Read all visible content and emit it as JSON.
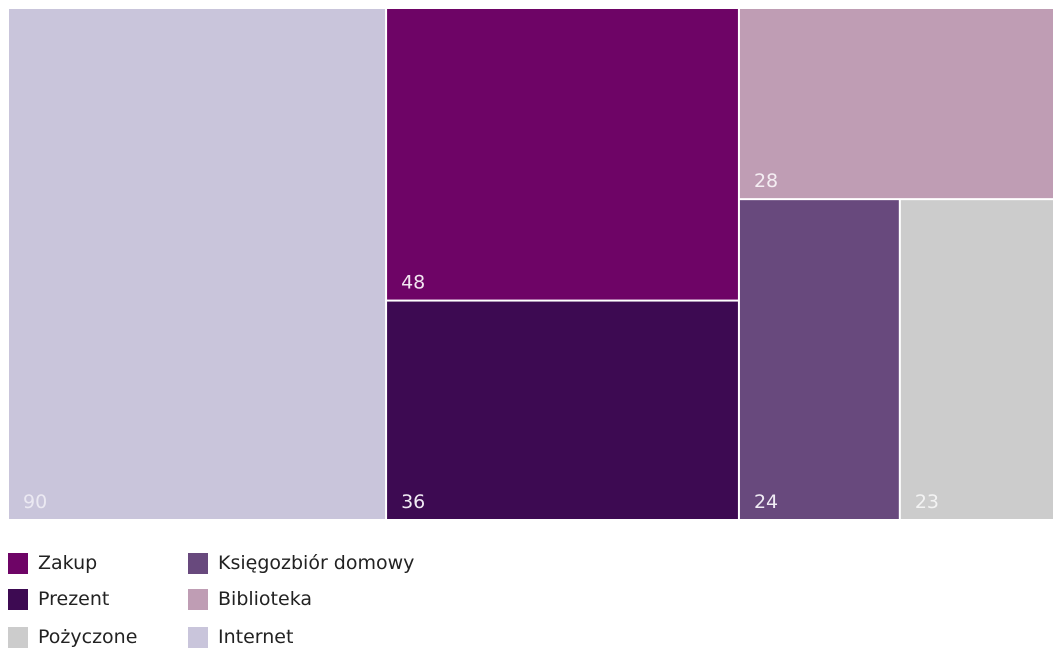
{
  "chart_data": {
    "type": "treemap",
    "title": "",
    "items": [
      {
        "label": "Internet",
        "value": 90,
        "color": "#c9c5db",
        "text_color": "#ebe9f2"
      },
      {
        "label": "Zakup",
        "value": 48,
        "color": "#6e0466",
        "text_color": "#f2e6f1"
      },
      {
        "label": "Prezent",
        "value": 36,
        "color": "#3d0a52",
        "text_color": "#f0eaf4"
      },
      {
        "label": "Biblioteka",
        "value": 28,
        "color": "#bf9db4",
        "text_color": "#f5eef3"
      },
      {
        "label": "Księgozbiór domowy",
        "value": 24,
        "color": "#68497d",
        "text_color": "#f0ecf4"
      },
      {
        "label": "Pożyczone",
        "value": 23,
        "color": "#cccccc",
        "text_color": "#f3f3f3"
      }
    ],
    "legend": {
      "placement": "bottom-left",
      "columns": [
        [
          "Zakup",
          "Prezent",
          "Pożyczone"
        ],
        [
          "Księgozbiór domowy",
          "Biblioteka",
          "Internet"
        ]
      ]
    }
  }
}
